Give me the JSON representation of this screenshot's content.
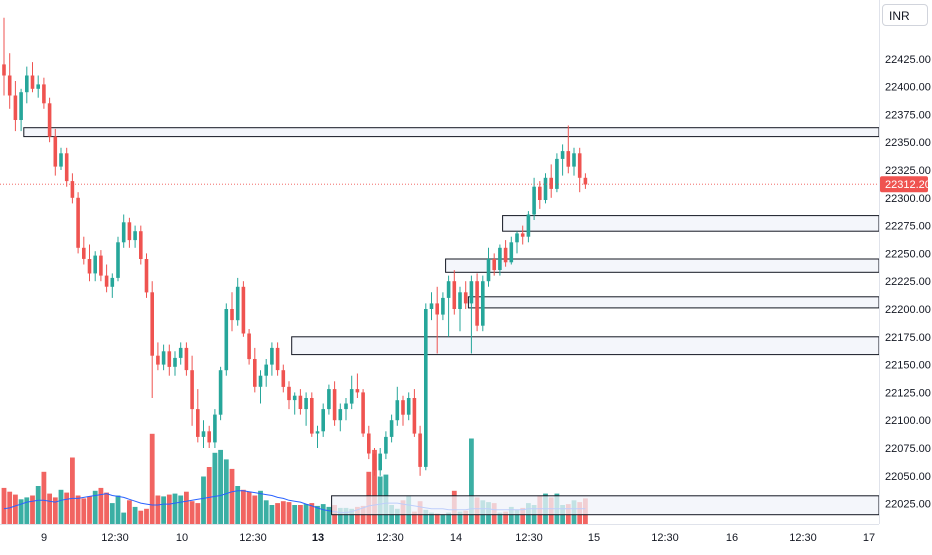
{
  "currency": "INR",
  "colors": {
    "up": "#26a69a",
    "down": "#ef5350",
    "volume_up": "#26a69a",
    "volume_down": "#ef5350",
    "ma_line": "#2962ff",
    "price_line": "#ef5350",
    "price_badge": "#ef5350",
    "zone_fill": "#f0f3fa",
    "zone_border": "#131722",
    "axis_text": "#131722"
  },
  "chart_data": {
    "type": "candlestick",
    "title": "",
    "ylim": [
      21995,
      22480
    ],
    "y_ticks": [
      "22025.00",
      "22050.00",
      "22075.00",
      "22100.00",
      "22125.00",
      "22150.00",
      "22175.00",
      "22200.00",
      "22225.00",
      "22250.00",
      "22275.00",
      "22300.00",
      "22325.00",
      "22350.00",
      "22375.00",
      "22400.00",
      "22425.00"
    ],
    "x_ticks": [
      "9",
      "12:30",
      "10",
      "12:30",
      "13",
      "12:30",
      "14",
      "12:30",
      "15",
      "12:30",
      "16",
      "12:30",
      "17"
    ],
    "bold_x_tick": "13",
    "last_price": "22312.20",
    "candles": [
      [
        22420,
        22462,
        22392,
        22410
      ],
      [
        22410,
        22430,
        22380,
        22392
      ],
      [
        22392,
        22405,
        22360,
        22370
      ],
      [
        22370,
        22398,
        22360,
        22395
      ],
      [
        22395,
        22418,
        22385,
        22410
      ],
      [
        22410,
        22422,
        22395,
        22398
      ],
      [
        22398,
        22410,
        22390,
        22402
      ],
      [
        22402,
        22408,
        22380,
        22385
      ],
      [
        22385,
        22390,
        22350,
        22355
      ],
      [
        22355,
        22362,
        22320,
        22328
      ],
      [
        22328,
        22345,
        22325,
        22340
      ],
      [
        22340,
        22345,
        22310,
        22315
      ],
      [
        22315,
        22322,
        22295,
        22300
      ],
      [
        22300,
        22305,
        22250,
        22255
      ],
      [
        22255,
        22265,
        22240,
        22245
      ],
      [
        22245,
        22258,
        22225,
        22232
      ],
      [
        22232,
        22252,
        22225,
        22248
      ],
      [
        22248,
        22253,
        22225,
        22230
      ],
      [
        22230,
        22240,
        22215,
        22220
      ],
      [
        22220,
        22232,
        22210,
        22228
      ],
      [
        22228,
        22265,
        22225,
        22260
      ],
      [
        22260,
        22285,
        22255,
        22278
      ],
      [
        22278,
        22282,
        22255,
        22262
      ],
      [
        22262,
        22275,
        22255,
        22270
      ],
      [
        22270,
        22275,
        22240,
        22245
      ],
      [
        22245,
        22250,
        22210,
        22215
      ],
      [
        22215,
        22225,
        22120,
        22158
      ],
      [
        22158,
        22170,
        22145,
        22150
      ],
      [
        22150,
        22168,
        22145,
        22162
      ],
      [
        22162,
        22168,
        22140,
        22148
      ],
      [
        22148,
        22162,
        22140,
        22156
      ],
      [
        22156,
        22170,
        22150,
        22165
      ],
      [
        22165,
        22170,
        22140,
        22145
      ],
      [
        22145,
        22158,
        22095,
        22110
      ],
      [
        22110,
        22128,
        22080,
        22085
      ],
      [
        22085,
        22100,
        22075,
        22090
      ],
      [
        22090,
        22095,
        22075,
        22080
      ],
      [
        22080,
        22110,
        22075,
        22105
      ],
      [
        22105,
        22148,
        22100,
        22145
      ],
      [
        22145,
        22205,
        22140,
        22200
      ],
      [
        22200,
        22215,
        22180,
        22190
      ],
      [
        22190,
        22228,
        22185,
        22220
      ],
      [
        22220,
        22225,
        22175,
        22178
      ],
      [
        22178,
        22182,
        22150,
        22155
      ],
      [
        22155,
        22165,
        22125,
        22130
      ],
      [
        22130,
        22145,
        22115,
        22140
      ],
      [
        22140,
        22155,
        22130,
        22150
      ],
      [
        22150,
        22170,
        22140,
        22165
      ],
      [
        22165,
        22170,
        22140,
        22145
      ],
      [
        22145,
        22150,
        22125,
        22130
      ],
      [
        22130,
        22135,
        22110,
        22118
      ],
      [
        22118,
        22125,
        22105,
        22122
      ],
      [
        22122,
        22128,
        22105,
        22110
      ],
      [
        22110,
        22125,
        22095,
        22120
      ],
      [
        22120,
        22125,
        22085,
        22088
      ],
      [
        22088,
        22095,
        22075,
        22090
      ],
      [
        22090,
        22115,
        22085,
        22110
      ],
      [
        22110,
        22132,
        22105,
        22128
      ],
      [
        22128,
        22135,
        22095,
        22100
      ],
      [
        22100,
        22115,
        22090,
        22110
      ],
      [
        22110,
        22120,
        22100,
        22115
      ],
      [
        22115,
        22140,
        22110,
        22128
      ],
      [
        22128,
        22142,
        22120,
        22125
      ],
      [
        22125,
        22128,
        22085,
        22088
      ],
      [
        22088,
        22095,
        22065,
        22070
      ],
      [
        22070,
        22075,
        22050,
        22055
      ],
      [
        22055,
        22075,
        22050,
        22070
      ],
      [
        22070,
        22090,
        22065,
        22085
      ],
      [
        22085,
        22105,
        22080,
        22100
      ],
      [
        22100,
        22130,
        22095,
        22118
      ],
      [
        22118,
        22122,
        22095,
        22105
      ],
      [
        22105,
        22125,
        22100,
        22120
      ],
      [
        22120,
        22128,
        22085,
        22088
      ],
      [
        22088,
        22095,
        22050,
        22058
      ],
      [
        22058,
        22205,
        22055,
        22200
      ],
      [
        22200,
        22215,
        22190,
        22205
      ],
      [
        22205,
        22220,
        22160,
        22195
      ],
      [
        22195,
        22215,
        22190,
        22210
      ],
      [
        22210,
        22230,
        22175,
        22225
      ],
      [
        22225,
        22235,
        22195,
        22200
      ],
      [
        22200,
        22220,
        22180,
        22215
      ],
      [
        22215,
        22225,
        22200,
        22205
      ],
      [
        22205,
        22230,
        22160,
        22225
      ],
      [
        22225,
        22232,
        22180,
        22185
      ],
      [
        22185,
        22230,
        22180,
        22225
      ],
      [
        22225,
        22255,
        22220,
        22245
      ],
      [
        22245,
        22250,
        22230,
        22235
      ],
      [
        22235,
        22258,
        22230,
        22255
      ],
      [
        22255,
        22262,
        22238,
        22242
      ],
      [
        22242,
        22265,
        22240,
        22260
      ],
      [
        22260,
        22270,
        22250,
        22268
      ],
      [
        22268,
        22275,
        22258,
        22265
      ],
      [
        22265,
        22288,
        22260,
        22285
      ],
      [
        22285,
        22318,
        22280,
        22310
      ],
      [
        22310,
        22315,
        22290,
        22298
      ],
      [
        22298,
        22322,
        22295,
        22318
      ],
      [
        22318,
        22330,
        22300,
        22308
      ],
      [
        22308,
        22340,
        22305,
        22335
      ],
      [
        22335,
        22348,
        22320,
        22342
      ],
      [
        22342,
        22365,
        22322,
        22328
      ],
      [
        22328,
        22345,
        22320,
        22340
      ],
      [
        22340,
        22345,
        22305,
        22318
      ],
      [
        22318,
        22322,
        22308,
        22312
      ]
    ],
    "volume_levels": [
      0.38,
      0.34,
      0.31,
      0.26,
      0.28,
      0.3,
      0.4,
      0.55,
      0.32,
      0.28,
      0.36,
      0.33,
      0.7,
      0.3,
      0.27,
      0.29,
      0.35,
      0.38,
      0.33,
      0.22,
      0.3,
      0.12,
      0.25,
      0.18,
      0.14,
      0.16,
      0.95,
      0.3,
      0.29,
      0.31,
      0.32,
      0.3,
      0.34,
      0.24,
      0.22,
      0.5,
      0.6,
      0.75,
      0.78,
      0.68,
      0.58,
      0.4,
      0.36,
      0.34,
      0.3,
      0.35,
      0.25,
      0.2,
      0.22,
      0.24,
      0.23,
      0.2,
      0.2,
      0.21,
      0.22,
      0.19,
      0.21,
      0.18,
      0.2,
      0.17,
      0.17,
      0.16,
      0.18,
      0.19,
      0.55,
      0.78,
      0.5,
      0.52,
      0.2,
      0.16,
      0.25,
      0.3,
      0.13,
      0.24,
      0.15,
      0.12,
      0.11,
      0.1,
      0.12,
      0.35,
      0.13,
      0.14,
      0.9,
      0.28,
      0.25,
      0.23,
      0.22,
      0.12,
      0.13,
      0.18,
      0.15,
      0.17,
      0.22,
      0.2,
      0.3,
      0.32,
      0.28,
      0.32,
      0.2,
      0.21,
      0.25,
      0.23,
      0.27
    ],
    "volume_ma_levels": [
      0.16,
      0.17,
      0.19,
      0.21,
      0.23,
      0.24,
      0.25,
      0.25,
      0.24,
      0.23,
      0.25,
      0.26,
      0.27,
      0.27,
      0.28,
      0.29,
      0.3,
      0.31,
      0.32,
      0.3,
      0.29,
      0.28,
      0.26,
      0.24,
      0.22,
      0.21,
      0.2,
      0.2,
      0.21,
      0.21,
      0.22,
      0.23,
      0.24,
      0.25,
      0.26,
      0.27,
      0.28,
      0.29,
      0.3,
      0.32,
      0.34,
      0.35,
      0.35,
      0.34,
      0.33,
      0.32,
      0.31,
      0.3,
      0.28,
      0.27,
      0.25,
      0.24,
      0.23,
      0.21,
      0.19,
      0.17,
      0.15,
      0.14,
      0.13,
      0.12,
      0.12,
      0.13,
      0.15,
      0.17,
      0.19,
      0.2,
      0.21,
      0.22,
      0.22,
      0.22,
      0.21,
      0.2,
      0.19,
      0.18,
      0.17,
      0.16,
      0.16,
      0.16,
      0.15,
      0.15,
      0.15,
      0.15,
      0.16,
      0.16,
      0.16,
      0.16,
      0.15,
      0.15,
      0.15,
      0.15,
      0.15,
      0.15,
      0.16,
      0.16,
      0.16,
      0.16,
      0.16,
      0.16,
      0.16,
      0.16,
      0.16,
      0.16,
      0.16
    ],
    "zones": [
      {
        "start": 4,
        "low": 22355,
        "high": 22363
      },
      {
        "start": 88,
        "low": 22270,
        "high": 22284
      },
      {
        "start": 78,
        "low": 22233,
        "high": 22245
      },
      {
        "start": 82,
        "low": 22201,
        "high": 22211
      },
      {
        "start": 51,
        "low": 22159,
        "high": 22175
      },
      {
        "start": 58,
        "low": 22015,
        "high": 22032
      }
    ]
  }
}
